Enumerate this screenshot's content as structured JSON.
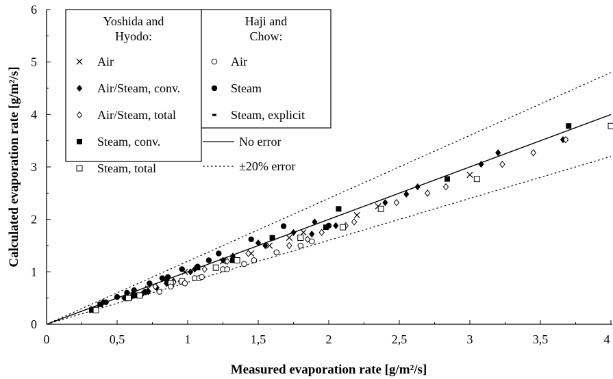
{
  "chart_data": {
    "type": "scatter",
    "title": "",
    "xlabel": "Measured evaporation rate [g/m²/s]",
    "ylabel": "Calculated evaporation rate [g/m²/s]",
    "xlim": [
      0,
      4
    ],
    "ylim": [
      0,
      6
    ],
    "x_ticks": [
      "0",
      "0,5",
      "1",
      "1,5",
      "2",
      "2,5",
      "3",
      "3,5",
      "4"
    ],
    "y_ticks": [
      "0",
      "1",
      "2",
      "3",
      "4",
      "5",
      "6"
    ],
    "grid": false,
    "legend_placement": "top-left",
    "legend": {
      "group1_header": [
        "Yoshida and",
        "Hyodo:"
      ],
      "group2_header": [
        "Haji and",
        "Chow:"
      ],
      "no_error_label": "No error",
      "error_band_label": "±20% error"
    },
    "reference_lines": [
      {
        "name": "No error",
        "style": "solid",
        "slope": 1.0
      },
      {
        "name": "±20% error",
        "style": "dotted",
        "slope": 1.2
      },
      {
        "name": "±20% error",
        "style": "dotted",
        "slope": 0.8
      }
    ],
    "series": [
      {
        "name": "Air",
        "group": "Yoshida and Hyodo",
        "marker": "x",
        "x": [
          0.33,
          0.72,
          0.98,
          1.25,
          1.45,
          1.58,
          1.72,
          1.82,
          2.2,
          2.35,
          3.0
        ],
        "y": [
          0.3,
          0.68,
          1.0,
          1.2,
          1.35,
          1.5,
          1.65,
          1.75,
          2.08,
          2.25,
          2.85
        ]
      },
      {
        "name": "Air/Steam, conv.",
        "group": "Yoshida and Hyodo",
        "marker": "diamond-filled",
        "x": [
          0.4,
          0.55,
          0.57,
          0.6,
          0.68,
          0.72,
          0.78,
          0.85,
          0.9,
          1.02,
          1.05,
          1.25,
          1.32,
          1.5,
          1.55,
          1.75,
          1.88,
          1.9,
          2.05,
          2.4,
          2.55,
          2.63,
          3.08,
          3.2,
          3.66
        ],
        "y": [
          0.42,
          0.5,
          0.5,
          0.52,
          0.58,
          0.62,
          0.7,
          0.78,
          0.82,
          1.0,
          1.05,
          1.22,
          1.3,
          1.55,
          1.5,
          1.75,
          1.72,
          1.95,
          1.88,
          2.32,
          2.48,
          2.62,
          3.05,
          3.27,
          3.52
        ]
      },
      {
        "name": "Air/Steam, total",
        "group": "Yoshida and Hyodo",
        "marker": "diamond-open",
        "x": [
          0.77,
          0.9,
          0.95,
          1.12,
          1.28,
          1.43,
          1.72,
          1.85,
          1.95,
          2.12,
          2.18,
          2.48,
          2.7,
          2.83,
          3.23,
          3.45,
          3.68
        ],
        "y": [
          0.72,
          0.8,
          0.82,
          1.05,
          1.2,
          1.35,
          1.5,
          1.62,
          1.75,
          1.88,
          1.95,
          2.32,
          2.5,
          2.62,
          3.05,
          3.27,
          3.52
        ]
      },
      {
        "name": "Steam, conv.",
        "group": "Yoshida and Hyodo",
        "marker": "square-filled",
        "x": [
          0.32,
          0.38,
          0.62,
          0.87,
          1.07,
          1.32,
          1.6,
          1.98,
          2.07,
          2.84,
          3.7
        ],
        "y": [
          0.27,
          0.38,
          0.55,
          0.78,
          1.08,
          1.22,
          1.65,
          1.85,
          2.2,
          2.77,
          3.78
        ]
      },
      {
        "name": "Steam, total",
        "group": "Yoshida and Hyodo",
        "marker": "square-open",
        "x": [
          0.35,
          0.58,
          0.66,
          0.88,
          0.96,
          1.2,
          1.35,
          1.8,
          2.1,
          2.37,
          3.05,
          4.0
        ],
        "y": [
          0.27,
          0.5,
          0.55,
          0.78,
          0.82,
          1.08,
          1.22,
          1.65,
          1.85,
          2.2,
          2.77,
          3.78
        ]
      },
      {
        "name": "Air",
        "group": "Haji and Chow",
        "marker": "circle-open",
        "x": [
          0.8,
          0.88,
          0.98,
          1.05,
          1.08,
          1.1,
          1.25,
          1.28,
          1.4,
          1.47,
          1.63,
          1.8,
          1.88
        ],
        "y": [
          0.62,
          0.72,
          0.78,
          0.88,
          0.88,
          0.9,
          1.05,
          1.05,
          1.15,
          1.22,
          1.37,
          1.5,
          1.58
        ]
      },
      {
        "name": "Steam",
        "group": "Haji and Chow",
        "marker": "circle-filled",
        "x": [
          0.42,
          0.5,
          0.57,
          0.62,
          0.7,
          0.73,
          0.82,
          0.85,
          0.86,
          0.96,
          1.07,
          1.15,
          1.22,
          1.45,
          1.68,
          2.0
        ],
        "y": [
          0.42,
          0.52,
          0.6,
          0.65,
          0.62,
          0.78,
          0.88,
          0.85,
          0.9,
          1.05,
          1.1,
          1.22,
          1.35,
          1.62,
          1.87,
          1.88
        ]
      },
      {
        "name": "Steam, explicit",
        "group": "Haji and Chow",
        "marker": "dash",
        "x": [],
        "y": []
      }
    ]
  }
}
